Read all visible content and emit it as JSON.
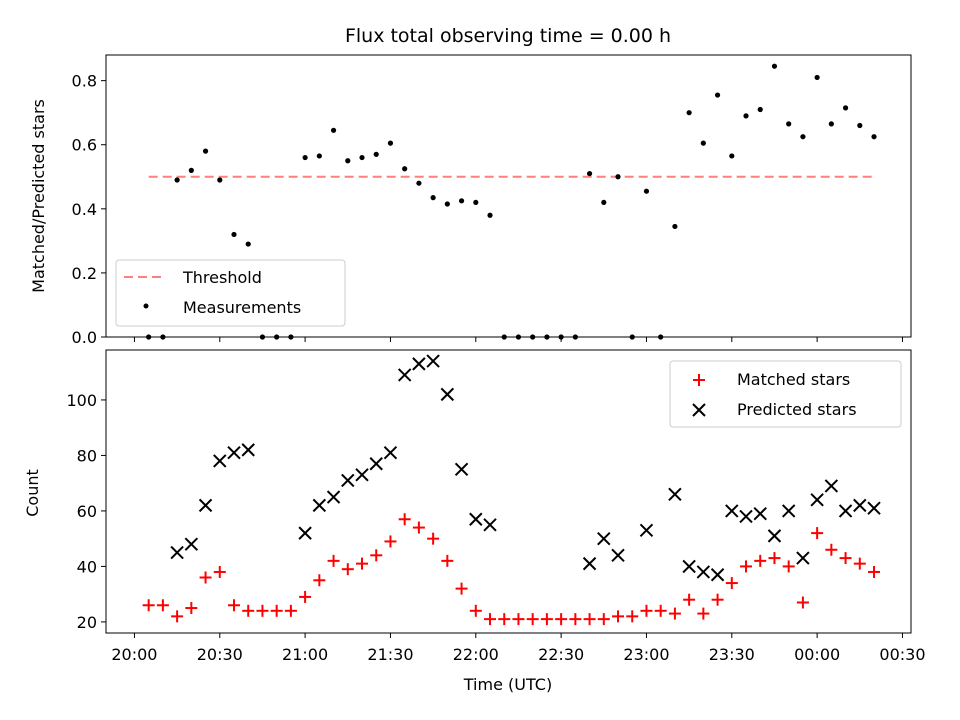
{
  "chart_data": [
    {
      "type": "scatter",
      "title": "Flux total observing time = 0.00 h",
      "xlabel": "",
      "ylabel": "Matched/Predicted stars",
      "ylim": [
        0,
        0.88
      ],
      "yticks": [
        0.0,
        0.2,
        0.4,
        0.6,
        0.8
      ],
      "ytick_labels": [
        "0.0",
        "0.2",
        "0.4",
        "0.6",
        "0.8"
      ],
      "legend_position": "lower-left",
      "threshold": {
        "name": "Threshold",
        "value": 0.5,
        "x_range": [
          "20:05",
          "00:20"
        ],
        "color": "#ff7f7f",
        "style": "dashed"
      },
      "series": [
        {
          "name": "Measurements",
          "marker": "dot",
          "color": "#000000",
          "points": [
            [
              "20:05",
              0.0
            ],
            [
              "20:10",
              0.0
            ],
            [
              "20:15",
              0.49
            ],
            [
              "20:20",
              0.52
            ],
            [
              "20:25",
              0.58
            ],
            [
              "20:30",
              0.49
            ],
            [
              "20:35",
              0.32
            ],
            [
              "20:40",
              0.29
            ],
            [
              "20:45",
              0.0
            ],
            [
              "20:50",
              0.0
            ],
            [
              "20:55",
              0.0
            ],
            [
              "21:00",
              0.56
            ],
            [
              "21:05",
              0.565
            ],
            [
              "21:10",
              0.645
            ],
            [
              "21:15",
              0.55
            ],
            [
              "21:20",
              0.56
            ],
            [
              "21:25",
              0.57
            ],
            [
              "21:30",
              0.605
            ],
            [
              "21:35",
              0.525
            ],
            [
              "21:40",
              0.48
            ],
            [
              "21:45",
              0.435
            ],
            [
              "21:50",
              0.415
            ],
            [
              "21:55",
              0.425
            ],
            [
              "22:00",
              0.42
            ],
            [
              "22:05",
              0.38
            ],
            [
              "22:10",
              0.0
            ],
            [
              "22:15",
              0.0
            ],
            [
              "22:20",
              0.0
            ],
            [
              "22:25",
              0.0
            ],
            [
              "22:30",
              0.0
            ],
            [
              "22:35",
              0.0
            ],
            [
              "22:40",
              0.51
            ],
            [
              "22:45",
              0.42
            ],
            [
              "22:50",
              0.5
            ],
            [
              "22:55",
              0.0
            ],
            [
              "23:00",
              0.455
            ],
            [
              "23:05",
              0.0
            ],
            [
              "23:10",
              0.345
            ],
            [
              "23:15",
              0.7
            ],
            [
              "23:20",
              0.605
            ],
            [
              "23:25",
              0.755
            ],
            [
              "23:30",
              0.565
            ],
            [
              "23:35",
              0.69
            ],
            [
              "23:40",
              0.71
            ],
            [
              "23:45",
              0.845
            ],
            [
              "23:50",
              0.665
            ],
            [
              "23:55",
              0.625
            ],
            [
              "00:00",
              0.81
            ],
            [
              "00:05",
              0.665
            ],
            [
              "00:10",
              0.715
            ],
            [
              "00:15",
              0.66
            ],
            [
              "00:20",
              0.625
            ]
          ]
        }
      ]
    },
    {
      "type": "scatter",
      "title": "",
      "xlabel": "Time (UTC)",
      "ylabel": "Count",
      "ylim": [
        16,
        118
      ],
      "yticks": [
        20,
        40,
        60,
        80,
        100
      ],
      "ytick_labels": [
        "20",
        "40",
        "60",
        "80",
        "100"
      ],
      "xlim": [
        "19:50",
        "00:33"
      ],
      "xticks": [
        "20:00",
        "20:30",
        "21:00",
        "21:30",
        "22:00",
        "22:30",
        "23:00",
        "23:30",
        "00:00",
        "00:30"
      ],
      "legend_position": "top-right",
      "series": [
        {
          "name": "Matched stars",
          "marker": "plus",
          "color": "#ff0000",
          "points": [
            [
              "20:05",
              26
            ],
            [
              "20:10",
              26
            ],
            [
              "20:15",
              22
            ],
            [
              "20:20",
              25
            ],
            [
              "20:25",
              36
            ],
            [
              "20:30",
              38
            ],
            [
              "20:35",
              26
            ],
            [
              "20:40",
              24
            ],
            [
              "20:45",
              24
            ],
            [
              "20:50",
              24
            ],
            [
              "20:55",
              24
            ],
            [
              "21:00",
              29
            ],
            [
              "21:05",
              35
            ],
            [
              "21:10",
              42
            ],
            [
              "21:15",
              39
            ],
            [
              "21:20",
              41
            ],
            [
              "21:25",
              44
            ],
            [
              "21:30",
              49
            ],
            [
              "21:35",
              57
            ],
            [
              "21:40",
              54
            ],
            [
              "21:45",
              50
            ],
            [
              "21:50",
              42
            ],
            [
              "21:55",
              32
            ],
            [
              "22:00",
              24
            ],
            [
              "22:05",
              21
            ],
            [
              "22:10",
              21
            ],
            [
              "22:15",
              21
            ],
            [
              "22:20",
              21
            ],
            [
              "22:25",
              21
            ],
            [
              "22:30",
              21
            ],
            [
              "22:35",
              21
            ],
            [
              "22:40",
              21
            ],
            [
              "22:45",
              21
            ],
            [
              "22:50",
              22
            ],
            [
              "22:55",
              22
            ],
            [
              "23:00",
              24
            ],
            [
              "23:05",
              24
            ],
            [
              "23:10",
              23
            ],
            [
              "23:15",
              28
            ],
            [
              "23:20",
              23
            ],
            [
              "23:25",
              28
            ],
            [
              "23:30",
              34
            ],
            [
              "23:35",
              40
            ],
            [
              "23:40",
              42
            ],
            [
              "23:45",
              43
            ],
            [
              "23:50",
              40
            ],
            [
              "23:55",
              27
            ],
            [
              "00:00",
              52
            ],
            [
              "00:05",
              46
            ],
            [
              "00:10",
              43
            ],
            [
              "00:15",
              41
            ],
            [
              "00:20",
              38
            ]
          ]
        },
        {
          "name": "Predicted stars",
          "marker": "x",
          "color": "#000000",
          "points": [
            [
              "20:15",
              45
            ],
            [
              "20:20",
              48
            ],
            [
              "20:25",
              62
            ],
            [
              "20:30",
              78
            ],
            [
              "20:35",
              81
            ],
            [
              "20:40",
              82
            ],
            [
              "21:00",
              52
            ],
            [
              "21:05",
              62
            ],
            [
              "21:10",
              65
            ],
            [
              "21:15",
              71
            ],
            [
              "21:20",
              73
            ],
            [
              "21:25",
              77
            ],
            [
              "21:30",
              81
            ],
            [
              "21:35",
              109
            ],
            [
              "21:40",
              113
            ],
            [
              "21:45",
              114
            ],
            [
              "21:50",
              102
            ],
            [
              "21:55",
              75
            ],
            [
              "22:00",
              57
            ],
            [
              "22:05",
              55
            ],
            [
              "22:40",
              41
            ],
            [
              "22:45",
              50
            ],
            [
              "22:50",
              44
            ],
            [
              "23:00",
              53
            ],
            [
              "23:10",
              66
            ],
            [
              "23:15",
              40
            ],
            [
              "23:20",
              38
            ],
            [
              "23:25",
              37
            ],
            [
              "23:30",
              60
            ],
            [
              "23:35",
              58
            ],
            [
              "23:40",
              59
            ],
            [
              "23:45",
              51
            ],
            [
              "23:50",
              60
            ],
            [
              "23:55",
              43
            ],
            [
              "00:00",
              64
            ],
            [
              "00:05",
              69
            ],
            [
              "00:10",
              60
            ],
            [
              "00:15",
              62
            ],
            [
              "00:20",
              61
            ]
          ]
        }
      ]
    }
  ]
}
